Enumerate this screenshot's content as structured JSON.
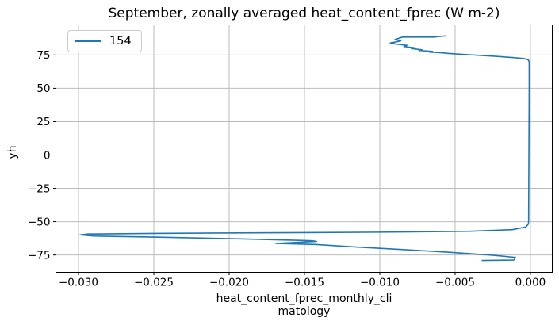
{
  "figure": {
    "background": "#ffffff",
    "text_color": "#000000"
  },
  "chart_data": {
    "type": "line",
    "title": "September, zonally averaged heat_content_fprec (W m-2)",
    "xlabel_lines": [
      "heat_content_fprec_monthly_cli",
      "matology"
    ],
    "xlabel_full": "heat_content_fprec_monthly_climatology",
    "ylabel": "yh",
    "xlim": [
      -0.0315,
      0.00145
    ],
    "ylim": [
      -88.0,
      97.5
    ],
    "grid": true,
    "grid_color": "#bbbbbb",
    "spine_color": "#000000",
    "xticks": {
      "values": [
        -0.03,
        -0.025,
        -0.02,
        -0.015,
        -0.01,
        -0.005,
        0.0
      ],
      "labels": [
        "−0.030",
        "−0.025",
        "−0.020",
        "−0.015",
        "−0.010",
        "−0.005",
        "0.000"
      ]
    },
    "yticks": {
      "values": [
        -75,
        -50,
        -25,
        0,
        25,
        50,
        75
      ],
      "labels": [
        "−75",
        "−50",
        "−25",
        "0",
        "25",
        "50",
        "75"
      ]
    },
    "legend": {
      "position": "upper left",
      "entries": [
        {
          "label": "154",
          "color": "#1f77b4"
        }
      ]
    },
    "series": [
      {
        "name": "154",
        "color": "#1f77b4",
        "x_is": "heat_content_fprec value (W m-2)",
        "y_is": "yh (latitude)",
        "points": [
          [
            -0.0056,
            89.3
          ],
          [
            -0.0061,
            88.8
          ],
          [
            -0.0064,
            88.4
          ],
          [
            -0.0085,
            88.4
          ],
          [
            -0.009,
            86.5
          ],
          [
            -0.0086,
            85.6
          ],
          [
            -0.0088,
            85.0
          ],
          [
            -0.0093,
            84.0
          ],
          [
            -0.0089,
            83.1
          ],
          [
            -0.0082,
            82.2
          ],
          [
            -0.0084,
            81.3
          ],
          [
            -0.0077,
            80.4
          ],
          [
            -0.0079,
            79.8
          ],
          [
            -0.0072,
            78.9
          ],
          [
            -0.0074,
            78.4
          ],
          [
            -0.0065,
            77.7
          ],
          [
            -0.0067,
            77.2
          ],
          [
            -0.0058,
            76.6
          ],
          [
            -0.0055,
            76.2
          ],
          [
            -0.0041,
            75.2
          ],
          [
            -0.0025,
            74.1
          ],
          [
            -0.0012,
            73.1
          ],
          [
            -0.0004,
            72.3
          ],
          [
            -0.00013,
            71.2
          ],
          [
            -8e-05,
            69.6
          ],
          [
            -8e-05,
            50.0
          ],
          [
            -9e-05,
            25.0
          ],
          [
            -0.0001,
            0.0
          ],
          [
            -0.00011,
            -25.0
          ],
          [
            -0.00012,
            -50.0
          ],
          [
            -0.00014,
            -51.8
          ],
          [
            -0.0003,
            -54.0
          ],
          [
            -0.0012,
            -56.0
          ],
          [
            -0.004,
            -57.2
          ],
          [
            -0.01,
            -57.9
          ],
          [
            -0.018,
            -58.4
          ],
          [
            -0.025,
            -58.8
          ],
          [
            -0.0294,
            -59.3
          ],
          [
            -0.0299,
            -59.9
          ],
          [
            -0.029,
            -60.8
          ],
          [
            -0.025,
            -61.6
          ],
          [
            -0.019,
            -63.0
          ],
          [
            -0.0145,
            -64.3
          ],
          [
            -0.0142,
            -64.8
          ],
          [
            -0.0169,
            -66.3
          ],
          [
            -0.0143,
            -67.1
          ],
          [
            -0.0119,
            -68.8
          ],
          [
            -0.0088,
            -70.7
          ],
          [
            -0.0056,
            -72.8
          ],
          [
            -0.0025,
            -75.2
          ],
          [
            -0.001,
            -76.8
          ],
          [
            -0.00105,
            -78.0
          ],
          [
            -0.0011,
            -78.8
          ],
          [
            -0.0032,
            -79.1
          ]
        ]
      }
    ]
  }
}
